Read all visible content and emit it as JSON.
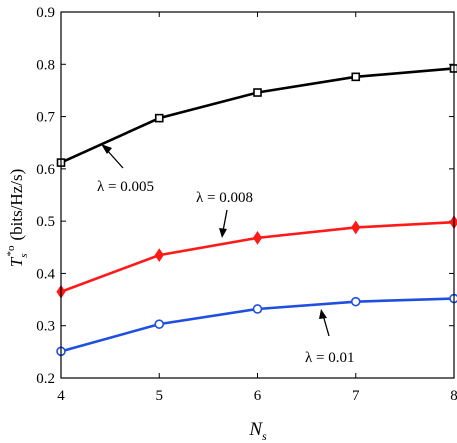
{
  "chart_data": {
    "type": "line",
    "xlabel_main": "N",
    "xlabel_sub": "s",
    "ylabel_main": "T",
    "ylabel_sub": "s",
    "ylabel_sup": "*o",
    "ylabel_unit": "(bits/Hz/s)",
    "x": [
      4,
      5,
      6,
      7,
      8
    ],
    "xlim": [
      4,
      8
    ],
    "ylim": [
      0.2,
      0.9
    ],
    "xticks": [
      "4",
      "5",
      "6",
      "7",
      "8"
    ],
    "yticks": [
      "0.2",
      "0.3",
      "0.4",
      "0.5",
      "0.6",
      "0.7",
      "0.8",
      "0.9"
    ],
    "grid": false,
    "series": [
      {
        "values": [
          0.612,
          0.697,
          0.746,
          0.776,
          0.792
        ],
        "color": "#000000",
        "marker": "square"
      },
      {
        "values": [
          0.365,
          0.435,
          0.468,
          0.488,
          0.498
        ],
        "color": "#ff1a1a",
        "marker": "diamond"
      },
      {
        "values": [
          0.251,
          0.303,
          0.332,
          0.346,
          0.352
        ],
        "color": "#1f4fe0",
        "marker": "circle"
      }
    ],
    "annotations": [
      {
        "text": "λ = 0.005",
        "arrow": "to-black-series"
      },
      {
        "text": "λ = 0.008",
        "arrow": "to-red-series"
      },
      {
        "text": "λ = 0.01",
        "arrow": "to-blue-series"
      }
    ]
  }
}
